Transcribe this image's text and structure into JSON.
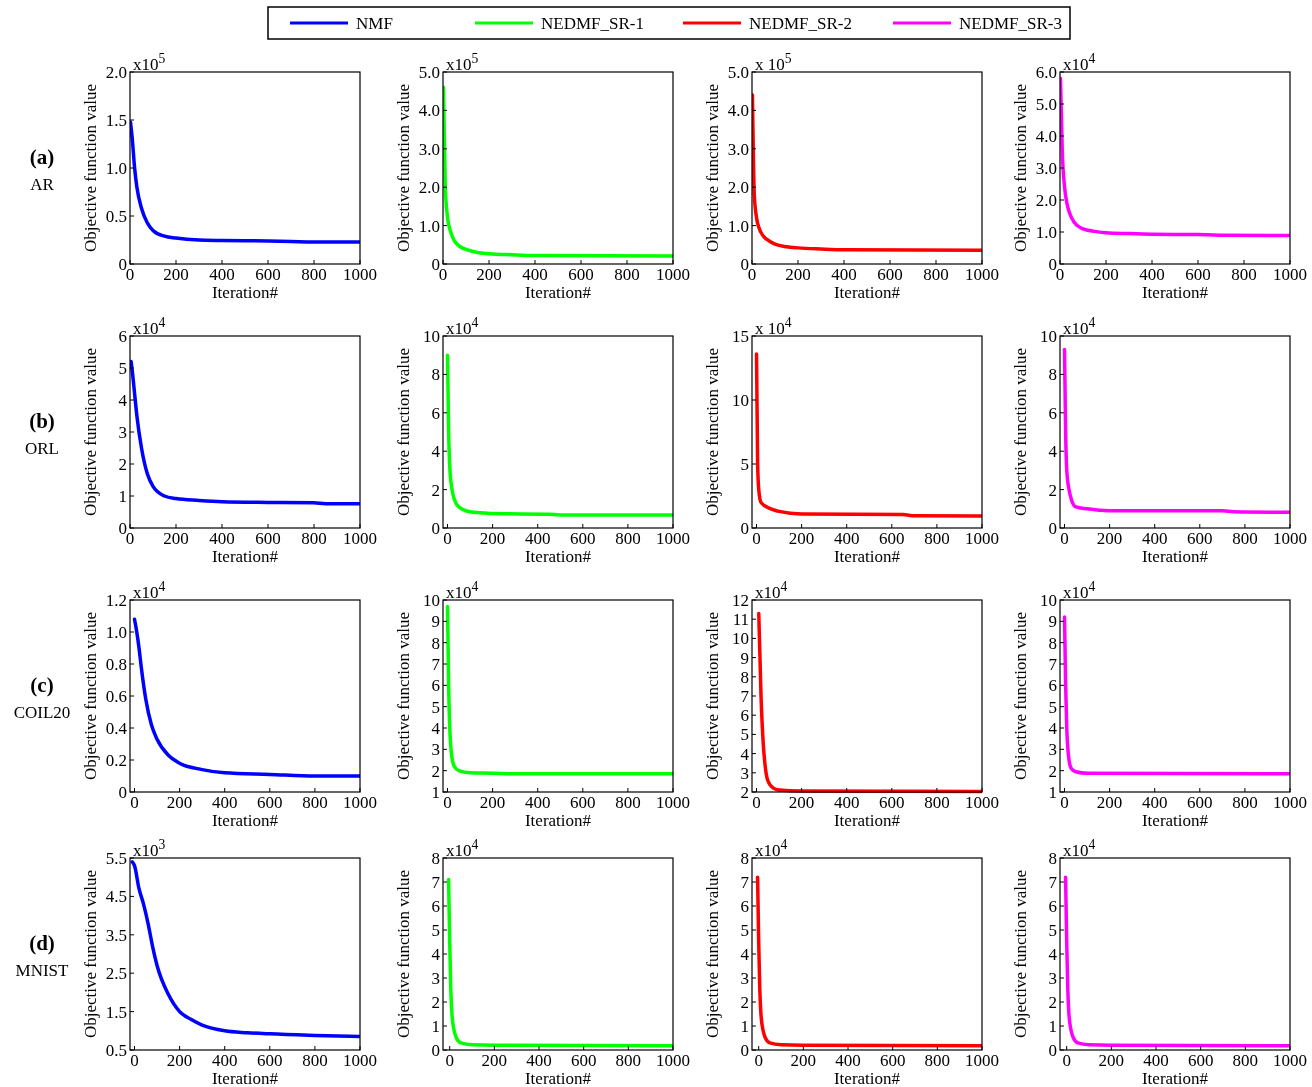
{
  "chart_data": [
    {
      "type": "line",
      "xlabel": "Iteration#",
      "ylabel": "Objective function value",
      "annotations": [
        "x10$^{5}$",
        "(a)",
        "AR"
      ],
      "legend": "top",
      "xlim": [
        0,
        1000
      ],
      "xticks": [
        0,
        200,
        400,
        600,
        800,
        1000
      ],
      "ylim": [
        0,
        2
      ],
      "yticks": [
        0,
        0.5,
        {
          "value": 1,
          "label": "1.0"
        },
        {
          "value": 1.5,
          "label": "1.5"
        },
        {
          "value": 2,
          "label": "2.0"
        }
      ],
      "series": [
        {
          "name": "NMF",
          "color": "#0000ff",
          "x": [
            2,
            10,
            20,
            30,
            50,
            75,
            100,
            150,
            200,
            300,
            400,
            600,
            700,
            800,
            1000
          ],
          "values": [
            1.48,
            1.3,
            1.0,
            0.8,
            0.58,
            0.43,
            0.35,
            0.29,
            0.27,
            0.25,
            0.245,
            0.24,
            0.235,
            0.23,
            0.23
          ]
        }
      ]
    },
    {
      "type": "line",
      "xlabel": "Iteration#",
      "ylabel": "Objective function value",
      "annotations": [
        "x10$^{5}$"
      ],
      "legend": "top",
      "xlim": [
        0,
        1000
      ],
      "xticks": [
        0,
        200,
        400,
        600,
        800,
        1000
      ],
      "ylim": [
        0,
        5
      ],
      "yticks": [
        0,
        {
          "value": 1,
          "label": "1.0"
        },
        {
          "value": 2,
          "label": "2.0"
        },
        {
          "value": 3,
          "label": "3.0"
        },
        {
          "value": 4,
          "label": "4.0"
        },
        {
          "value": 5,
          "label": "5.0"
        }
      ],
      "series": [
        {
          "name": "NEDMF_SR-1",
          "color": "#00ff00",
          "x": [
            2,
            10,
            20,
            30,
            50,
            75,
            100,
            150,
            200,
            300,
            400,
            1000
          ],
          "values": [
            4.6,
            2.0,
            1.2,
            0.9,
            0.6,
            0.45,
            0.38,
            0.3,
            0.27,
            0.24,
            0.22,
            0.21
          ]
        }
      ]
    },
    {
      "type": "line",
      "xlabel": "Iteration#",
      "ylabel": "Objective function value",
      "annotations": [
        "x 10$^{5}$"
      ],
      "legend": "top",
      "xlim": [
        0,
        1000
      ],
      "xticks": [
        0,
        200,
        400,
        600,
        800,
        1000
      ],
      "ylim": [
        0,
        5
      ],
      "yticks": [
        0,
        {
          "value": 1,
          "label": "1.0"
        },
        {
          "value": 2,
          "label": "2.0"
        },
        {
          "value": 3,
          "label": "3.0"
        },
        {
          "value": 4,
          "label": "4.0"
        },
        {
          "value": 5,
          "label": "5.0"
        }
      ],
      "series": [
        {
          "name": "NEDMF_SR-2",
          "color": "#ff0000",
          "x": [
            2,
            10,
            20,
            30,
            50,
            75,
            100,
            150,
            200,
            300,
            400,
            1000
          ],
          "values": [
            4.4,
            1.8,
            1.2,
            0.95,
            0.72,
            0.6,
            0.52,
            0.45,
            0.42,
            0.39,
            0.37,
            0.36
          ]
        }
      ]
    },
    {
      "type": "line",
      "xlabel": "Iteration#",
      "ylabel": "Objective function value",
      "annotations": [
        "x10$^{4}$"
      ],
      "legend": "top",
      "xlim": [
        0,
        1000
      ],
      "xticks": [
        0,
        200,
        400,
        600,
        800,
        1000
      ],
      "ylim": [
        0,
        6
      ],
      "yticks": [
        0,
        {
          "value": 1,
          "label": "1.0"
        },
        {
          "value": 2,
          "label": "2.0"
        },
        {
          "value": 3,
          "label": "3.0"
        },
        {
          "value": 4,
          "label": "4.0"
        },
        {
          "value": 5,
          "label": "5.0"
        },
        {
          "value": 6,
          "label": "6.0"
        }
      ],
      "series": [
        {
          "name": "NEDMF_SR-3",
          "color": "#ff00ff",
          "x": [
            2,
            10,
            20,
            30,
            50,
            75,
            100,
            150,
            200,
            300,
            400,
            600,
            700,
            1000
          ],
          "values": [
            5.8,
            3.5,
            2.4,
            1.9,
            1.45,
            1.2,
            1.1,
            1.02,
            0.98,
            0.95,
            0.93,
            0.92,
            0.9,
            0.89
          ]
        }
      ]
    },
    {
      "type": "line",
      "xlabel": "Iteration#",
      "ylabel": "Objective function value",
      "annotations": [
        "x10$^{4}$",
        "(b)",
        "ORL"
      ],
      "xlim": [
        0,
        1000
      ],
      "xticks": [
        0,
        200,
        400,
        600,
        800,
        1000
      ],
      "ylim": [
        0,
        6
      ],
      "yticks": [
        0,
        1,
        2,
        3,
        4,
        5,
        6
      ],
      "series": [
        {
          "color": "#0000ff",
          "x": [
            5,
            10,
            20,
            30,
            50,
            75,
            100,
            150,
            200,
            300,
            400,
            600,
            800,
            850,
            1000
          ],
          "values": [
            5.2,
            4.9,
            4.2,
            3.5,
            2.5,
            1.7,
            1.3,
            1.0,
            0.92,
            0.86,
            0.82,
            0.8,
            0.79,
            0.76,
            0.76
          ]
        }
      ]
    },
    {
      "type": "line",
      "xlabel": "Iteration#",
      "ylabel": "Objective function value",
      "annotations": [
        "x10$^{4}$"
      ],
      "xlim": [
        -20,
        1000
      ],
      "xticks": [
        0,
        200,
        400,
        600,
        800,
        1000
      ],
      "ylim": [
        0,
        10
      ],
      "yticks": [
        0,
        2,
        4,
        6,
        8,
        10
      ],
      "series": [
        {
          "color": "#00ff00",
          "x": [
            0,
            5,
            10,
            20,
            30,
            50,
            100,
            150,
            200,
            450,
            500,
            1000
          ],
          "values": [
            9,
            5,
            3.2,
            2.0,
            1.5,
            1.1,
            0.85,
            0.8,
            0.75,
            0.72,
            0.68,
            0.68
          ]
        }
      ]
    },
    {
      "type": "line",
      "xlabel": "Iteration#",
      "ylabel": "Objective function value",
      "annotations": [
        "x 10$^{4}$"
      ],
      "xlim": [
        -20,
        1000
      ],
      "xticks": [
        0,
        200,
        400,
        600,
        800,
        1000
      ],
      "ylim": [
        0,
        15
      ],
      "yticks": [
        0,
        5,
        10,
        15
      ],
      "series": [
        {
          "color": "#ff0000",
          "x": [
            0,
            5,
            10,
            20,
            50,
            100,
            200,
            650,
            700,
            1000
          ],
          "values": [
            13.6,
            5,
            3.0,
            2.0,
            1.6,
            1.3,
            1.1,
            1.05,
            0.95,
            0.93
          ]
        }
      ]
    },
    {
      "type": "line",
      "xlabel": "Iteration#",
      "ylabel": "Objective function value",
      "annotations": [
        "x10$^{4}$"
      ],
      "xlim": [
        -20,
        1000
      ],
      "xticks": [
        0,
        200,
        400,
        600,
        800,
        1000
      ],
      "ylim": [
        0,
        10
      ],
      "yticks": [
        0,
        2,
        4,
        6,
        8,
        10
      ],
      "series": [
        {
          "color": "#ff00ff",
          "x": [
            0,
            5,
            10,
            20,
            30,
            50,
            100,
            200,
            700,
            750,
            1000
          ],
          "values": [
            9.3,
            5,
            3,
            2,
            1.5,
            1.1,
            1.0,
            0.9,
            0.9,
            0.85,
            0.82
          ]
        }
      ]
    },
    {
      "type": "line",
      "xlabel": "Iteration#",
      "ylabel": "Objective function value",
      "annotations": [
        "x10$^{4}$",
        "(c)",
        "COIL20"
      ],
      "xlim": [
        -20,
        1000
      ],
      "xticks": [
        0,
        200,
        400,
        600,
        800,
        1000
      ],
      "ylim": [
        0,
        1.2
      ],
      "yticks": [
        0,
        0.2,
        0.4,
        0.6,
        0.8,
        {
          "value": 1,
          "label": "1.0"
        },
        1.2
      ],
      "series": [
        {
          "color": "#0000ff",
          "x": [
            0,
            10,
            20,
            30,
            50,
            75,
            100,
            150,
            200,
            300,
            400,
            600,
            800,
            1000
          ],
          "values": [
            1.08,
            1.0,
            0.9,
            0.78,
            0.58,
            0.42,
            0.33,
            0.23,
            0.18,
            0.14,
            0.12,
            0.11,
            0.1,
            0.1
          ]
        }
      ]
    },
    {
      "type": "line",
      "xlabel": "Iteration#",
      "ylabel": "Objective function value",
      "annotations": [
        "x10$^{4}$"
      ],
      "xlim": [
        -20,
        1000
      ],
      "xticks": [
        0,
        200,
        400,
        600,
        800,
        1000
      ],
      "ylim": [
        1,
        10
      ],
      "yticks": [
        1,
        2,
        3,
        4,
        5,
        6,
        7,
        8,
        9,
        10
      ],
      "series": [
        {
          "color": "#00ff00",
          "x": [
            0,
            5,
            10,
            20,
            30,
            50,
            100,
            200,
            300,
            1000
          ],
          "values": [
            9.7,
            6,
            4,
            2.6,
            2.2,
            2.0,
            1.9,
            1.88,
            1.85,
            1.85
          ]
        }
      ]
    },
    {
      "type": "line",
      "xlabel": "Iteration#",
      "ylabel": "Objective function value",
      "annotations": [
        "x10$^{4}$"
      ],
      "xlim": [
        -20,
        1000
      ],
      "xticks": [
        0,
        200,
        400,
        600,
        800,
        1000
      ],
      "ylim": [
        2,
        12
      ],
      "yticks": [
        2,
        3,
        4,
        5,
        6,
        7,
        8,
        9,
        10,
        11,
        12
      ],
      "series": [
        {
          "color": "#ff0000",
          "x": [
            10,
            20,
            30,
            40,
            50,
            75,
            100,
            200,
            1000
          ],
          "values": [
            11.3,
            7,
            4.5,
            3.2,
            2.6,
            2.2,
            2.1,
            2.05,
            2.03
          ]
        }
      ]
    },
    {
      "type": "line",
      "xlabel": "Iteration#",
      "ylabel": "Objective function value",
      "annotations": [
        "x10$^{4}$"
      ],
      "xlim": [
        -20,
        1000
      ],
      "xticks": [
        0,
        200,
        400,
        600,
        800,
        1000
      ],
      "ylim": [
        1,
        10
      ],
      "yticks": [
        1,
        2,
        3,
        4,
        5,
        6,
        7,
        8,
        9,
        10
      ],
      "series": [
        {
          "color": "#ff00ff",
          "x": [
            0,
            5,
            10,
            20,
            30,
            50,
            100,
            1000
          ],
          "values": [
            9.2,
            6,
            4,
            2.5,
            2.1,
            1.95,
            1.88,
            1.85
          ]
        }
      ]
    },
    {
      "type": "line",
      "xlabel": "Iteration#",
      "ylabel": "Objective function value",
      "annotations": [
        "x10$^{3}$",
        "(d)",
        "MNIST"
      ],
      "xlim": [
        -20,
        1000
      ],
      "xticks": [
        0,
        200,
        400,
        600,
        800,
        1000
      ],
      "ylim": [
        0.5,
        5.5
      ],
      "yticks": [
        0.5,
        1.5,
        2.5,
        3.5,
        4.5,
        5.5
      ],
      "series": [
        {
          "color": "#0000ff",
          "x": [
            -10,
            0,
            20,
            40,
            60,
            80,
            100,
            150,
            200,
            250,
            300,
            400,
            500,
            600,
            800,
            1000
          ],
          "values": [
            5.4,
            5.3,
            4.7,
            4.3,
            3.8,
            3.2,
            2.7,
            1.95,
            1.5,
            1.3,
            1.15,
            1.0,
            0.95,
            0.92,
            0.88,
            0.85
          ]
        }
      ]
    },
    {
      "type": "line",
      "xlabel": "Iteration#",
      "ylabel": "Objective function value",
      "annotations": [
        "x10$^{4}$"
      ],
      "xlim": [
        -30,
        1000
      ],
      "xticks": [
        0,
        200,
        400,
        600,
        800,
        1000
      ],
      "ylim": [
        0,
        8
      ],
      "yticks": [
        0,
        1,
        2,
        3,
        4,
        5,
        6,
        7,
        8
      ],
      "series": [
        {
          "color": "#00ff00",
          "x": [
            -5,
            0,
            5,
            10,
            20,
            30,
            50,
            100,
            200,
            1000
          ],
          "values": [
            7.1,
            4.5,
            2.5,
            1.5,
            0.8,
            0.5,
            0.3,
            0.22,
            0.2,
            0.18
          ]
        }
      ]
    },
    {
      "type": "line",
      "xlabel": "Iteration#",
      "ylabel": "Objective function value",
      "annotations": [
        "x10$^{4}$"
      ],
      "xlim": [
        -30,
        1000
      ],
      "xticks": [
        0,
        200,
        400,
        600,
        800,
        1000
      ],
      "ylim": [
        0,
        8
      ],
      "yticks": [
        0,
        1,
        2,
        3,
        4,
        5,
        6,
        7,
        8
      ],
      "series": [
        {
          "color": "#ff0000",
          "x": [
            -5,
            0,
            5,
            10,
            20,
            30,
            50,
            100,
            200,
            1000
          ],
          "values": [
            7.2,
            4.5,
            2.5,
            1.5,
            0.8,
            0.5,
            0.3,
            0.22,
            0.2,
            0.18
          ]
        }
      ]
    },
    {
      "type": "line",
      "xlabel": "Iteration#",
      "ylabel": "Objective function value",
      "annotations": [
        "x10$^{4}$"
      ],
      "xlim": [
        -30,
        1000
      ],
      "xticks": [
        0,
        200,
        400,
        600,
        800,
        1000
      ],
      "ylim": [
        0,
        8
      ],
      "yticks": [
        0,
        1,
        2,
        3,
        4,
        5,
        6,
        7,
        8
      ],
      "series": [
        {
          "color": "#ff00ff",
          "x": [
            -5,
            0,
            5,
            10,
            20,
            30,
            50,
            100,
            200,
            1000
          ],
          "values": [
            7.2,
            4.5,
            2.5,
            1.5,
            0.8,
            0.5,
            0.3,
            0.22,
            0.2,
            0.18
          ]
        }
      ]
    }
  ]
}
